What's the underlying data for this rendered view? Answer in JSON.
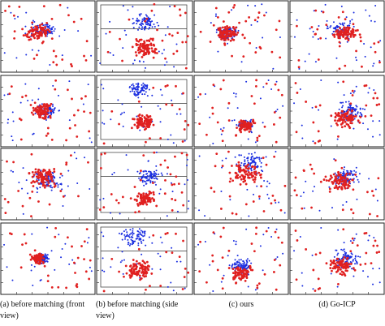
{
  "figure": {
    "captions": [
      "(a) before matching (front view)",
      "(b) before matching (side view)",
      "(c) ours",
      "(d) Go-ICP"
    ]
  }
}
